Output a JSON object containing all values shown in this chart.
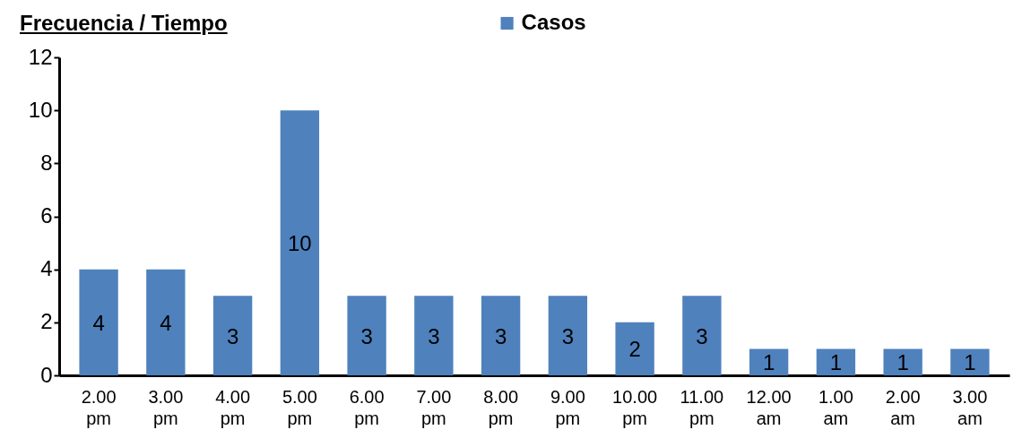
{
  "chart_data": {
    "type": "bar",
    "title": "Frecuencia / Tiempo",
    "categories": [
      "2.00 pm",
      "3.00 pm",
      "4.00 pm",
      "5.00 pm",
      "6.00 pm",
      "7.00 pm",
      "8.00 pm",
      "9.00 pm",
      "10.00 pm",
      "11.00 pm",
      "12.00 am",
      "1.00 am",
      "2.00 am",
      "3.00 am"
    ],
    "series": [
      {
        "name": "Casos",
        "color": "#4f81bd",
        "values": [
          4,
          4,
          3,
          10,
          3,
          3,
          3,
          3,
          2,
          3,
          1,
          1,
          1,
          1
        ]
      }
    ],
    "ylim": [
      0,
      12
    ],
    "yticks": [
      0,
      2,
      4,
      6,
      8,
      10,
      12
    ],
    "grid": false,
    "legend": "top",
    "data_labels": true
  }
}
